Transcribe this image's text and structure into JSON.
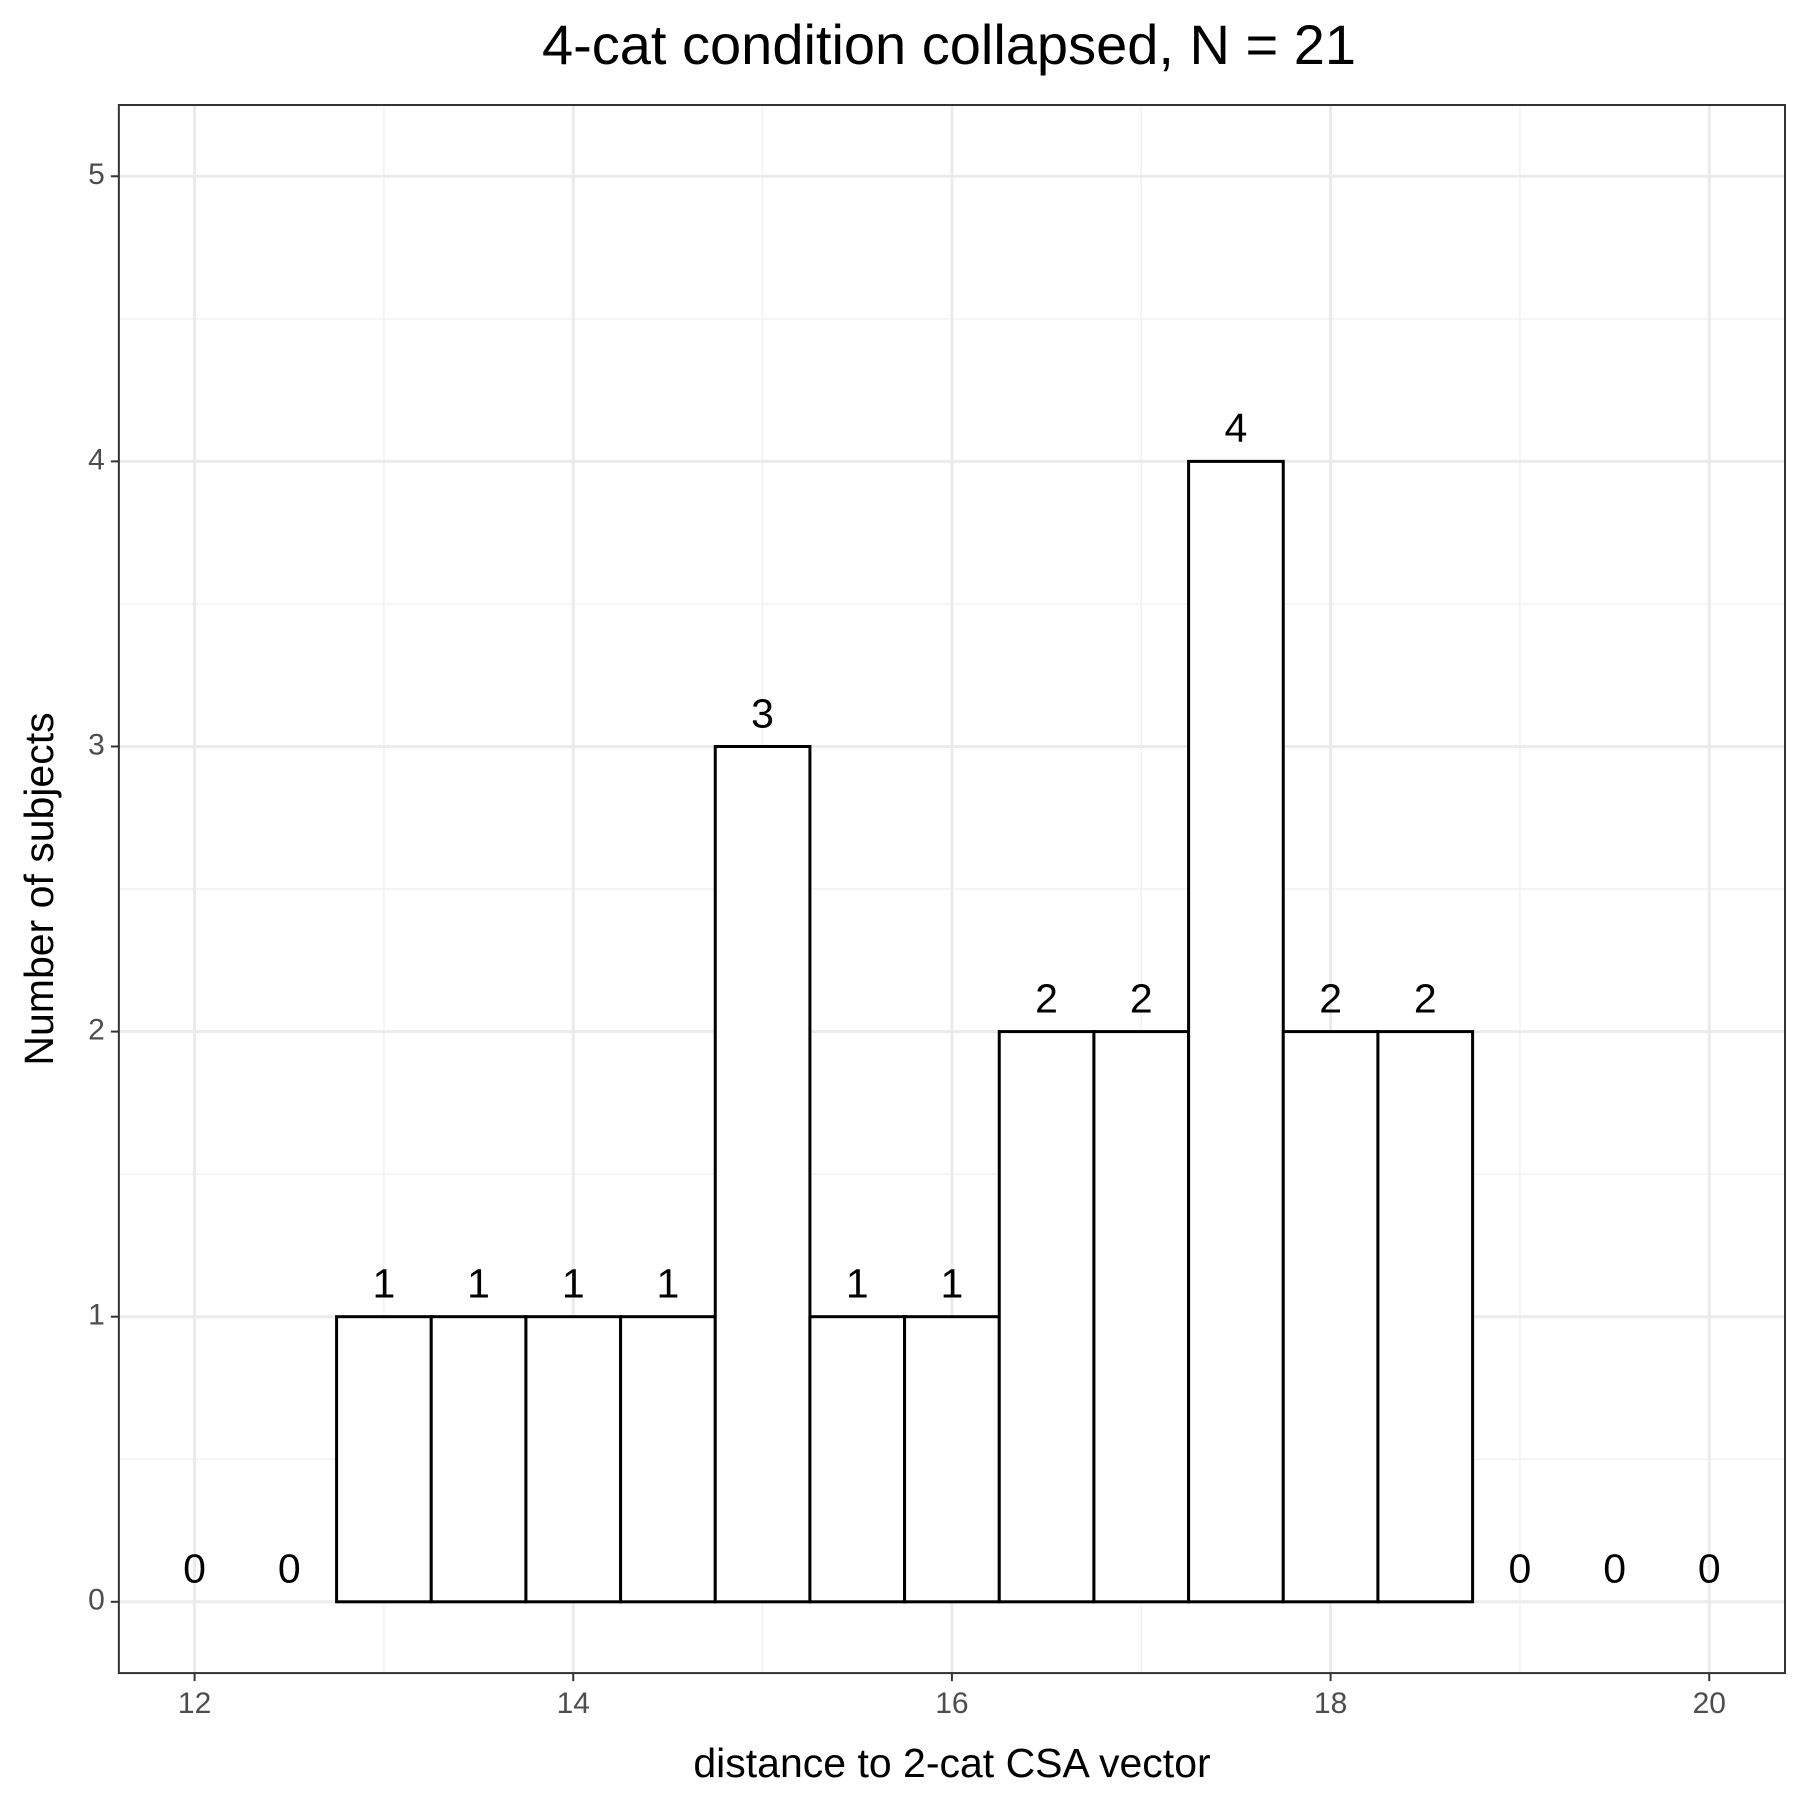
{
  "chart_data": {
    "type": "histogram",
    "title": "4-cat condition collapsed, N = 21",
    "x_label": "distance to 2-cat CSA vector",
    "y_label": "Number of subjects",
    "bins": [
      11.75,
      12.25,
      12.75,
      13.25,
      13.75,
      14.25,
      14.75,
      15.25,
      15.75,
      16.25,
      16.75,
      17.25,
      17.75,
      18.25,
      18.75,
      19.25,
      19.75,
      20.25
    ],
    "values": [
      0,
      0,
      1,
      1,
      1,
      1,
      3,
      1,
      1,
      2,
      2,
      4,
      2,
      2,
      0,
      0,
      0
    ],
    "color": "#ffffff",
    "edge_color": "#000000",
    "xlim": [
      11.6,
      20.4
    ],
    "xticks": [
      12,
      14,
      16,
      18,
      20
    ],
    "ylim": [
      -0.25,
      5.25
    ],
    "yticks": [
      0,
      1,
      2,
      3,
      4,
      5
    ],
    "grid": true
  }
}
